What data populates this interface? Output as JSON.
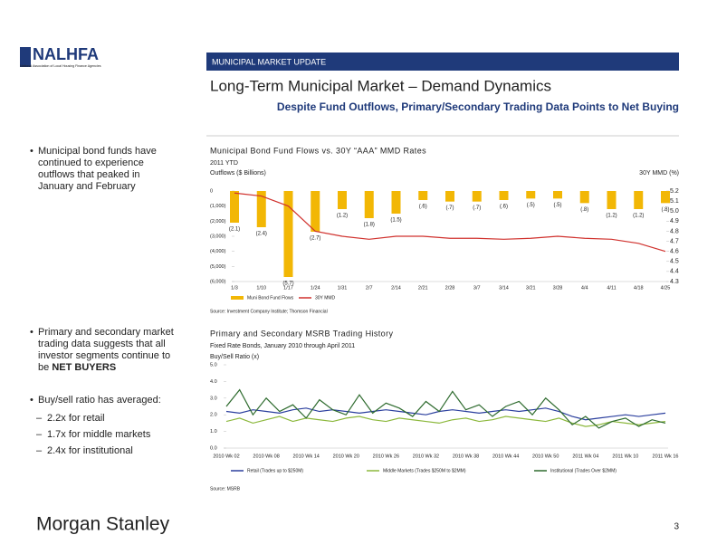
{
  "header": {
    "logo": "NALHFA",
    "logo_tagline": "National Association of Local Housing Finance Agencies",
    "section": "MUNICIPAL MARKET UPDATE",
    "title": "Long-Term Municipal Market – Demand Dynamics",
    "subtitle": "Despite Fund Outflows, Primary/Secondary Trading Data Points to Net Buying"
  },
  "bullets": {
    "first": "Municipal bond funds have continued to experience outflows that peaked in January and February",
    "second": {
      "text": "Primary and secondary market trading data suggests that all investor segments continue to be",
      "bold": "NET BUYERS"
    },
    "third": "Buy/sell ratio has averaged:",
    "sub": [
      "2.2x for retail",
      "1.7x for middle markets",
      "2.4x for institutional"
    ]
  },
  "footer": {
    "brand": "Morgan Stanley",
    "page": "3"
  },
  "chart_data": [
    {
      "type": "bar",
      "title": "Municipal Bond Fund Flows vs. 30Y “AAA” MMD Rates",
      "subtitle": "2011 YTD",
      "y_label": "Outflows ($ Billions)",
      "y2_label": "30Y MMD (%)",
      "source": "Source:  Investment Company Institute; Thomson Financial",
      "categories": [
        "1/3",
        "1/10",
        "1/17",
        "1/24",
        "1/31",
        "2/7",
        "2/14",
        "2/21",
        "2/28",
        "3/7",
        "3/14",
        "3/21",
        "3/28",
        "4/4",
        "4/11",
        "4/18",
        "4/25"
      ],
      "series": [
        {
          "name": "Muni Bond Fund Flows",
          "color": "#f2b705",
          "values": [
            -2100,
            -2400,
            -5700,
            -2700,
            -1200,
            -1800,
            -1500,
            -600,
            -700,
            -700,
            -600,
            -500,
            -500,
            -800,
            -1200,
            -1200,
            -800
          ],
          "value_labels": [
            "(2.1)",
            "(2.4)",
            "(5.7)",
            "(2.7)",
            "(1.2)",
            "(1.8)",
            "(1.5)",
            "(.6)",
            "(.7)",
            "(.7)",
            "(.6)",
            "(.5)",
            "(.5)",
            "(.8)",
            "(1.2)",
            "(1.2)",
            "(.8)"
          ]
        },
        {
          "name": "30Y MMD",
          "color": "#d0312d",
          "axis": "y2",
          "values": [
            5.18,
            5.15,
            5.05,
            4.8,
            4.75,
            4.72,
            4.75,
            4.75,
            4.73,
            4.73,
            4.72,
            4.73,
            4.75,
            4.73,
            4.72,
            4.68,
            4.6
          ]
        }
      ],
      "ylim": [
        -6000,
        0
      ],
      "yticks": [
        0,
        {
          "value": -1000,
          "label": "(1,000)"
        },
        {
          "value": -2000,
          "label": "(2,000)"
        },
        {
          "value": -3000,
          "label": "(3,000)"
        },
        {
          "value": -4000,
          "label": "(4,000)"
        },
        {
          "value": -5000,
          "label": "(5,000)"
        },
        {
          "value": -6000,
          "label": "(6,000)"
        }
      ],
      "y2lim": [
        4.3,
        5.2
      ],
      "y2ticks": [
        4.3,
        4.4,
        4.5,
        4.6,
        4.7,
        4.8,
        4.9,
        {
          "value": 5,
          "label": "5.0"
        },
        5.1,
        5.2
      ]
    },
    {
      "type": "line",
      "title": "Primary and Secondary MSRB Trading History",
      "subtitle": "Fixed Rate Bonds, January 2010 through April 2011",
      "y_label": "Buy/Sell Ratio (x)",
      "source": "Source:  MSRB",
      "categories": [
        "2010 Wk 02",
        null,
        null,
        "2010 Wk 08",
        null,
        null,
        "2010 Wk 14",
        null,
        null,
        "2010 Wk 20",
        null,
        null,
        "2010 Wk 26",
        null,
        null,
        "2010 Wk 32",
        null,
        null,
        "2010 Wk 38",
        null,
        null,
        "2010 Wk 44",
        null,
        null,
        "2010 Wk 50",
        null,
        null,
        "2011 Wk 04",
        null,
        null,
        "2011 Wk 10",
        null,
        null,
        "2011 Wk 16"
      ],
      "series": [
        {
          "name": "Retail (Trades up to $250M)",
          "color": "#2b3f9e",
          "values": [
            2.2,
            2.1,
            2.3,
            2.2,
            2.1,
            2.3,
            2.4,
            2.2,
            2.3,
            2.2,
            2.1,
            2.2,
            2.3,
            2.2,
            2.1,
            2.0,
            2.2,
            2.3,
            2.2,
            2.1,
            2.2,
            2.3,
            2.2,
            2.3,
            2.4,
            2.2,
            1.9,
            1.7,
            1.8,
            1.9,
            2.0,
            1.9,
            2.0,
            2.1
          ]
        },
        {
          "name": "Middle Markets (Trades $250M to $2MM)",
          "color": "#8cb83c",
          "values": [
            1.6,
            1.8,
            1.5,
            1.7,
            1.9,
            1.6,
            1.8,
            1.7,
            1.6,
            1.8,
            1.9,
            1.7,
            1.6,
            1.8,
            1.7,
            1.6,
            1.5,
            1.7,
            1.8,
            1.6,
            1.7,
            1.9,
            1.8,
            1.7,
            1.6,
            1.8,
            1.5,
            1.3,
            1.4,
            1.6,
            1.5,
            1.4,
            1.5,
            1.6
          ]
        },
        {
          "name": "Institutional (Trades Over $2MM)",
          "color": "#2e6b2e",
          "values": [
            2.5,
            3.5,
            2.0,
            3.0,
            2.2,
            2.6,
            1.8,
            2.9,
            2.3,
            2.0,
            3.2,
            2.1,
            2.7,
            2.4,
            1.9,
            2.8,
            2.2,
            3.4,
            2.3,
            2.6,
            1.9,
            2.5,
            2.8,
            2.0,
            3.0,
            2.3,
            1.4,
            1.9,
            1.2,
            1.6,
            1.8,
            1.3,
            1.7,
            1.5
          ]
        }
      ],
      "ylim": [
        0,
        5
      ],
      "yticks": [
        {
          "value": 0,
          "label": "0.0"
        },
        {
          "value": 1,
          "label": "1.0"
        },
        {
          "value": 2,
          "label": "2.0"
        },
        {
          "value": 3,
          "label": "3.0"
        },
        {
          "value": 4,
          "label": "4.0"
        },
        {
          "value": 5,
          "label": "5.0"
        }
      ]
    }
  ]
}
